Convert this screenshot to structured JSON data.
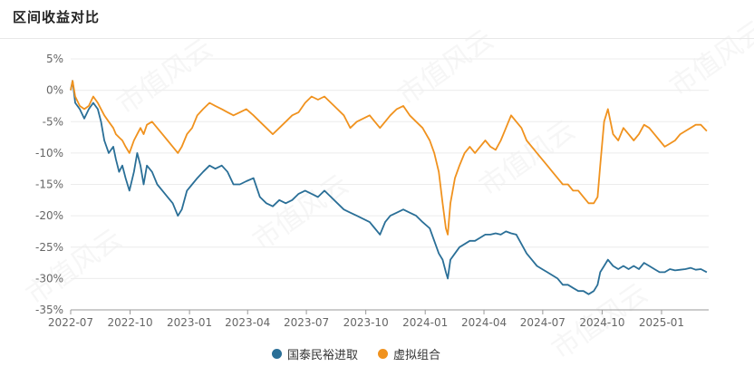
{
  "page": {
    "title": "区间收益对比",
    "watermark": "市值风云"
  },
  "chart_data": {
    "type": "line",
    "title": "区间收益对比",
    "xlabel": "",
    "ylabel": "",
    "x_range": [
      "2022-07-01",
      "2025-03-15"
    ],
    "ylim": [
      -35,
      5
    ],
    "y_ticks": [
      5,
      0,
      -5,
      -10,
      -15,
      -20,
      -25,
      -30,
      -35
    ],
    "y_tick_labels": [
      "5%",
      "0%",
      "-5%",
      "-10%",
      "-15%",
      "-20%",
      "-25%",
      "-30%",
      "-35%"
    ],
    "x_ticks": [
      "2022-07-01",
      "2022-10-01",
      "2023-01-01",
      "2023-04-01",
      "2023-07-01",
      "2023-10-01",
      "2024-01-01",
      "2024-04-01",
      "2024-07-01",
      "2024-10-01",
      "2025-01-01"
    ],
    "x_tick_labels": [
      "2022-07",
      "2022-10",
      "2023-01",
      "2023-04",
      "2023-07",
      "2023-10",
      "2024-01",
      "2024-04",
      "2024-07",
      "2024-10",
      "2025-01"
    ],
    "grid": true,
    "legend_position": "bottom",
    "series": [
      {
        "name": "国泰民裕进取",
        "color": "#2a6f97",
        "points": [
          [
            "2022-07-01",
            0
          ],
          [
            "2022-07-04",
            1.5
          ],
          [
            "2022-07-08",
            -2
          ],
          [
            "2022-07-15",
            -3
          ],
          [
            "2022-07-22",
            -4.5
          ],
          [
            "2022-07-29",
            -3
          ],
          [
            "2022-08-05",
            -2
          ],
          [
            "2022-08-12",
            -3
          ],
          [
            "2022-08-17",
            -5
          ],
          [
            "2022-08-22",
            -8
          ],
          [
            "2022-08-29",
            -10
          ],
          [
            "2022-09-05",
            -9
          ],
          [
            "2022-09-09",
            -11
          ],
          [
            "2022-09-14",
            -13
          ],
          [
            "2022-09-19",
            -12
          ],
          [
            "2022-09-24",
            -14
          ],
          [
            "2022-09-30",
            -16
          ],
          [
            "2022-10-07",
            -13
          ],
          [
            "2022-10-12",
            -10
          ],
          [
            "2022-10-17",
            -12
          ],
          [
            "2022-10-22",
            -15
          ],
          [
            "2022-10-27",
            -12
          ],
          [
            "2022-11-04",
            -13
          ],
          [
            "2022-11-12",
            -15
          ],
          [
            "2022-11-20",
            -16
          ],
          [
            "2022-11-28",
            -17
          ],
          [
            "2022-12-06",
            -18
          ],
          [
            "2022-12-14",
            -20
          ],
          [
            "2022-12-20",
            -19
          ],
          [
            "2022-12-28",
            -16
          ],
          [
            "2023-01-05",
            -15
          ],
          [
            "2023-01-13",
            -14
          ],
          [
            "2023-01-22",
            -13
          ],
          [
            "2023-02-01",
            -12
          ],
          [
            "2023-02-10",
            -12.5
          ],
          [
            "2023-02-20",
            -12
          ],
          [
            "2023-03-01",
            -13
          ],
          [
            "2023-03-10",
            -15
          ],
          [
            "2023-03-20",
            -15
          ],
          [
            "2023-03-30",
            -14.5
          ],
          [
            "2023-04-10",
            -14
          ],
          [
            "2023-04-20",
            -17
          ],
          [
            "2023-04-30",
            -18
          ],
          [
            "2023-05-10",
            -18.5
          ],
          [
            "2023-05-20",
            -17.5
          ],
          [
            "2023-05-30",
            -18
          ],
          [
            "2023-06-09",
            -17.5
          ],
          [
            "2023-06-19",
            -16.5
          ],
          [
            "2023-06-29",
            -16
          ],
          [
            "2023-07-09",
            -16.5
          ],
          [
            "2023-07-19",
            -17
          ],
          [
            "2023-07-29",
            -16
          ],
          [
            "2023-08-08",
            -17
          ],
          [
            "2023-08-18",
            -18
          ],
          [
            "2023-08-28",
            -19
          ],
          [
            "2023-09-07",
            -19.5
          ],
          [
            "2023-09-17",
            -20
          ],
          [
            "2023-09-27",
            -20.5
          ],
          [
            "2023-10-07",
            -21
          ],
          [
            "2023-10-15",
            -22
          ],
          [
            "2023-10-23",
            -23
          ],
          [
            "2023-10-31",
            -21
          ],
          [
            "2023-11-08",
            -20
          ],
          [
            "2023-11-18",
            -19.5
          ],
          [
            "2023-11-28",
            -19
          ],
          [
            "2023-12-08",
            -19.5
          ],
          [
            "2023-12-18",
            -20
          ],
          [
            "2023-12-28",
            -21
          ],
          [
            "2024-01-08",
            -22
          ],
          [
            "2024-01-15",
            -24
          ],
          [
            "2024-01-22",
            -26
          ],
          [
            "2024-01-28",
            -27
          ],
          [
            "2024-02-02",
            -29
          ],
          [
            "2024-02-05",
            -30
          ],
          [
            "2024-02-09",
            -27
          ],
          [
            "2024-02-16",
            -26
          ],
          [
            "2024-02-23",
            -25
          ],
          [
            "2024-03-02",
            -24.5
          ],
          [
            "2024-03-10",
            -24
          ],
          [
            "2024-03-18",
            -24
          ],
          [
            "2024-03-26",
            -23.5
          ],
          [
            "2024-04-03",
            -23
          ],
          [
            "2024-04-11",
            -23
          ],
          [
            "2024-04-19",
            -22.8
          ],
          [
            "2024-04-27",
            -23
          ],
          [
            "2024-05-05",
            -22.5
          ],
          [
            "2024-05-13",
            -22.8
          ],
          [
            "2024-05-21",
            -23
          ],
          [
            "2024-05-29",
            -24.5
          ],
          [
            "2024-06-06",
            -26
          ],
          [
            "2024-06-14",
            -27
          ],
          [
            "2024-06-22",
            -28
          ],
          [
            "2024-06-30",
            -28.5
          ],
          [
            "2024-07-08",
            -29
          ],
          [
            "2024-07-16",
            -29.5
          ],
          [
            "2024-07-24",
            -30
          ],
          [
            "2024-08-01",
            -31
          ],
          [
            "2024-08-09",
            -31
          ],
          [
            "2024-08-17",
            -31.5
          ],
          [
            "2024-08-25",
            -32
          ],
          [
            "2024-09-02",
            -32
          ],
          [
            "2024-09-10",
            -32.5
          ],
          [
            "2024-09-18",
            -32
          ],
          [
            "2024-09-24",
            -31
          ],
          [
            "2024-09-28",
            -29
          ],
          [
            "2024-10-04",
            -28
          ],
          [
            "2024-10-10",
            -27
          ],
          [
            "2024-10-18",
            -28
          ],
          [
            "2024-10-26",
            -28.5
          ],
          [
            "2024-11-03",
            -28
          ],
          [
            "2024-11-11",
            -28.5
          ],
          [
            "2024-11-19",
            -28
          ],
          [
            "2024-11-27",
            -28.5
          ],
          [
            "2024-12-05",
            -27.5
          ],
          [
            "2024-12-13",
            -28
          ],
          [
            "2024-12-21",
            -28.5
          ],
          [
            "2024-12-29",
            -29
          ],
          [
            "2025-01-06",
            -29
          ],
          [
            "2025-01-14",
            -28.5
          ],
          [
            "2025-01-22",
            -28.7
          ],
          [
            "2025-01-30",
            -28.6
          ],
          [
            "2025-02-07",
            -28.5
          ],
          [
            "2025-02-15",
            -28.3
          ],
          [
            "2025-02-23",
            -28.6
          ],
          [
            "2025-03-03",
            -28.5
          ],
          [
            "2025-03-12",
            -29
          ]
        ]
      },
      {
        "name": "虚拟组合",
        "color": "#f0921e",
        "points": [
          [
            "2022-07-01",
            0
          ],
          [
            "2022-07-04",
            1.5
          ],
          [
            "2022-07-08",
            -1
          ],
          [
            "2022-07-15",
            -2.5
          ],
          [
            "2022-07-22",
            -3
          ],
          [
            "2022-07-29",
            -2.5
          ],
          [
            "2022-08-05",
            -1
          ],
          [
            "2022-08-12",
            -2
          ],
          [
            "2022-08-17",
            -3
          ],
          [
            "2022-08-22",
            -4
          ],
          [
            "2022-08-29",
            -5
          ],
          [
            "2022-09-05",
            -6
          ],
          [
            "2022-09-09",
            -7
          ],
          [
            "2022-09-14",
            -7.5
          ],
          [
            "2022-09-19",
            -8
          ],
          [
            "2022-09-24",
            -9
          ],
          [
            "2022-09-30",
            -10
          ],
          [
            "2022-10-07",
            -8
          ],
          [
            "2022-10-12",
            -7
          ],
          [
            "2022-10-17",
            -6
          ],
          [
            "2022-10-22",
            -7
          ],
          [
            "2022-10-27",
            -5.5
          ],
          [
            "2022-11-04",
            -5
          ],
          [
            "2022-11-12",
            -6
          ],
          [
            "2022-11-20",
            -7
          ],
          [
            "2022-11-28",
            -8
          ],
          [
            "2022-12-06",
            -9
          ],
          [
            "2022-12-14",
            -10
          ],
          [
            "2022-12-20",
            -9
          ],
          [
            "2022-12-28",
            -7
          ],
          [
            "2023-01-05",
            -6
          ],
          [
            "2023-01-13",
            -4
          ],
          [
            "2023-01-22",
            -3
          ],
          [
            "2023-02-01",
            -2
          ],
          [
            "2023-02-10",
            -2.5
          ],
          [
            "2023-02-20",
            -3
          ],
          [
            "2023-03-01",
            -3.5
          ],
          [
            "2023-03-10",
            -4
          ],
          [
            "2023-03-20",
            -3.5
          ],
          [
            "2023-03-30",
            -3
          ],
          [
            "2023-04-10",
            -4
          ],
          [
            "2023-04-20",
            -5
          ],
          [
            "2023-04-30",
            -6
          ],
          [
            "2023-05-10",
            -7
          ],
          [
            "2023-05-20",
            -6
          ],
          [
            "2023-05-30",
            -5
          ],
          [
            "2023-06-09",
            -4
          ],
          [
            "2023-06-19",
            -3.5
          ],
          [
            "2023-06-29",
            -2
          ],
          [
            "2023-07-09",
            -1
          ],
          [
            "2023-07-19",
            -1.5
          ],
          [
            "2023-07-29",
            -1
          ],
          [
            "2023-08-08",
            -2
          ],
          [
            "2023-08-18",
            -3
          ],
          [
            "2023-08-28",
            -4
          ],
          [
            "2023-09-07",
            -6
          ],
          [
            "2023-09-17",
            -5
          ],
          [
            "2023-09-27",
            -4.5
          ],
          [
            "2023-10-07",
            -4
          ],
          [
            "2023-10-15",
            -5
          ],
          [
            "2023-10-23",
            -6
          ],
          [
            "2023-10-31",
            -5
          ],
          [
            "2023-11-08",
            -4
          ],
          [
            "2023-11-18",
            -3
          ],
          [
            "2023-11-28",
            -2.5
          ],
          [
            "2023-12-08",
            -4
          ],
          [
            "2023-12-18",
            -5
          ],
          [
            "2023-12-28",
            -6
          ],
          [
            "2024-01-08",
            -8
          ],
          [
            "2024-01-15",
            -10
          ],
          [
            "2024-01-22",
            -13
          ],
          [
            "2024-01-28",
            -18
          ],
          [
            "2024-02-02",
            -22
          ],
          [
            "2024-02-05",
            -23
          ],
          [
            "2024-02-09",
            -18
          ],
          [
            "2024-02-16",
            -14
          ],
          [
            "2024-02-23",
            -12
          ],
          [
            "2024-03-02",
            -10
          ],
          [
            "2024-03-10",
            -9
          ],
          [
            "2024-03-18",
            -10
          ],
          [
            "2024-03-26",
            -9
          ],
          [
            "2024-04-03",
            -8
          ],
          [
            "2024-04-11",
            -9
          ],
          [
            "2024-04-19",
            -9.5
          ],
          [
            "2024-04-27",
            -8
          ],
          [
            "2024-05-05",
            -6
          ],
          [
            "2024-05-13",
            -4
          ],
          [
            "2024-05-21",
            -5
          ],
          [
            "2024-05-29",
            -6
          ],
          [
            "2024-06-06",
            -8
          ],
          [
            "2024-06-14",
            -9
          ],
          [
            "2024-06-22",
            -10
          ],
          [
            "2024-06-30",
            -11
          ],
          [
            "2024-07-08",
            -12
          ],
          [
            "2024-07-16",
            -13
          ],
          [
            "2024-07-24",
            -14
          ],
          [
            "2024-08-01",
            -15
          ],
          [
            "2024-08-09",
            -15
          ],
          [
            "2024-08-17",
            -16
          ],
          [
            "2024-08-25",
            -16
          ],
          [
            "2024-09-02",
            -17
          ],
          [
            "2024-09-10",
            -18
          ],
          [
            "2024-09-18",
            -18
          ],
          [
            "2024-09-24",
            -17
          ],
          [
            "2024-09-28",
            -12
          ],
          [
            "2024-10-04",
            -5
          ],
          [
            "2024-10-10",
            -3
          ],
          [
            "2024-10-18",
            -7
          ],
          [
            "2024-10-26",
            -8
          ],
          [
            "2024-11-03",
            -6
          ],
          [
            "2024-11-11",
            -7
          ],
          [
            "2024-11-19",
            -8
          ],
          [
            "2024-11-27",
            -7
          ],
          [
            "2024-12-05",
            -5.5
          ],
          [
            "2024-12-13",
            -6
          ],
          [
            "2024-12-21",
            -7
          ],
          [
            "2024-12-29",
            -8
          ],
          [
            "2025-01-06",
            -9
          ],
          [
            "2025-01-14",
            -8.5
          ],
          [
            "2025-01-22",
            -8
          ],
          [
            "2025-01-30",
            -7
          ],
          [
            "2025-02-07",
            -6.5
          ],
          [
            "2025-02-15",
            -6
          ],
          [
            "2025-02-23",
            -5.5
          ],
          [
            "2025-03-03",
            -5.5
          ],
          [
            "2025-03-12",
            -6.5
          ]
        ]
      }
    ]
  }
}
